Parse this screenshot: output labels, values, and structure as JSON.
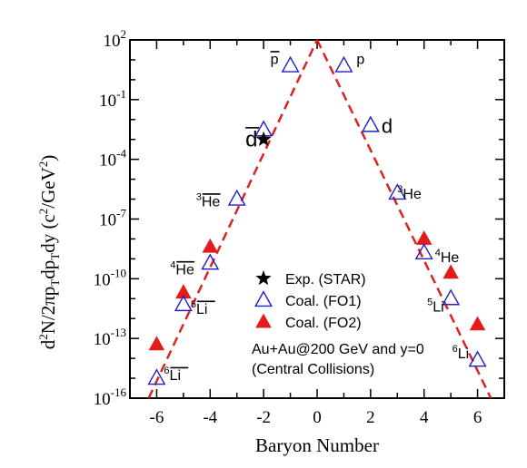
{
  "chart_data": {
    "type": "scatter",
    "xlabel": "Baryon Number",
    "ylabel": "d²N/2πp_T dp_T dy (c²/GeV²)",
    "xlim": [
      -7,
      7
    ],
    "ylim": [
      1e-16,
      100
    ],
    "yscale": "log",
    "x_ticks": [
      "-6",
      "-4",
      "-2",
      "0",
      "2",
      "4",
      "6"
    ],
    "y_ticks": [
      {
        "base": "10",
        "exp": "2",
        "value": 100
      },
      {
        "base": "10",
        "exp": "-1",
        "value": 0.1
      },
      {
        "base": "10",
        "exp": "-4",
        "value": 0.0001
      },
      {
        "base": "10",
        "exp": "-7",
        "value": 1e-07
      },
      {
        "base": "10",
        "exp": "-10",
        "value": 1e-10
      },
      {
        "base": "10",
        "exp": "-13",
        "value": 1e-13
      },
      {
        "base": "10",
        "exp": "-16",
        "value": 1e-16
      }
    ],
    "series": [
      {
        "name": "Exp. (STAR)",
        "marker": "star",
        "color": "#000000",
        "points": [
          {
            "x": -2,
            "y": 0.001
          }
        ]
      },
      {
        "name": "Coal. (FO1)",
        "marker": "open-triangle",
        "color": "#1f1fcc",
        "points": [
          {
            "x": -6,
            "y": 1e-15
          },
          {
            "x": -5,
            "y": 5e-12
          },
          {
            "x": -4,
            "y": 6e-10
          },
          {
            "x": -3,
            "y": 1e-06
          },
          {
            "x": -2,
            "y": 0.003
          },
          {
            "x": -1,
            "y": 5
          },
          {
            "x": 1,
            "y": 5
          },
          {
            "x": 2,
            "y": 0.005
          },
          {
            "x": 3,
            "y": 2e-06
          },
          {
            "x": 4,
            "y": 2e-09
          },
          {
            "x": 5,
            "y": 1e-11
          },
          {
            "x": 6,
            "y": 8e-15
          }
        ]
      },
      {
        "name": "Coal. (FO2)",
        "marker": "filled-triangle",
        "color": "#e51a1a",
        "points": [
          {
            "x": -6,
            "y": 5e-14
          },
          {
            "x": -5,
            "y": 2e-11
          },
          {
            "x": -4,
            "y": 4e-09
          },
          {
            "x": 4,
            "y": 1e-08
          },
          {
            "x": 5,
            "y": 2e-10
          },
          {
            "x": 6,
            "y": 5e-13
          }
        ]
      }
    ],
    "fit_line": {
      "style": "dashed",
      "color": "#dd2222",
      "left": {
        "x0": -6.3,
        "y0": 1e-16,
        "x1": 0,
        "y1": 100
      },
      "right": {
        "x0": 0,
        "y0": 100,
        "x1": 6.5,
        "y1": 1e-16
      }
    },
    "legend": {
      "placement": "lower-center",
      "entries": [
        "Exp. (STAR)",
        "Coal. (FO1)",
        "Coal. (FO2)"
      ]
    },
    "annotation": [
      "Au+Au@200 GeV and y=0",
      "(Central Collisions)"
    ],
    "species_labels": [
      {
        "x": -1,
        "pre": "",
        "text": "p",
        "overline": true
      },
      {
        "x": -2,
        "pre": "",
        "text": "d",
        "overline": true
      },
      {
        "x": -3,
        "pre": "3",
        "text": "He",
        "overline": true
      },
      {
        "x": -4,
        "pre": "4",
        "text": "He",
        "overline": true
      },
      {
        "x": -5,
        "pre": "5",
        "text": "Li",
        "overline": true
      },
      {
        "x": -6,
        "pre": "6",
        "text": "Li",
        "overline": true
      },
      {
        "x": 1,
        "pre": "",
        "text": "p",
        "overline": false
      },
      {
        "x": 2,
        "pre": "",
        "text": "d",
        "overline": false
      },
      {
        "x": 3,
        "pre": "3",
        "text": "He",
        "overline": false
      },
      {
        "x": 4,
        "pre": "4",
        "text": "He",
        "overline": false
      },
      {
        "x": 5,
        "pre": "5",
        "text": "Li",
        "overline": false
      },
      {
        "x": 6,
        "pre": "6",
        "text": "Li",
        "overline": false
      }
    ]
  }
}
